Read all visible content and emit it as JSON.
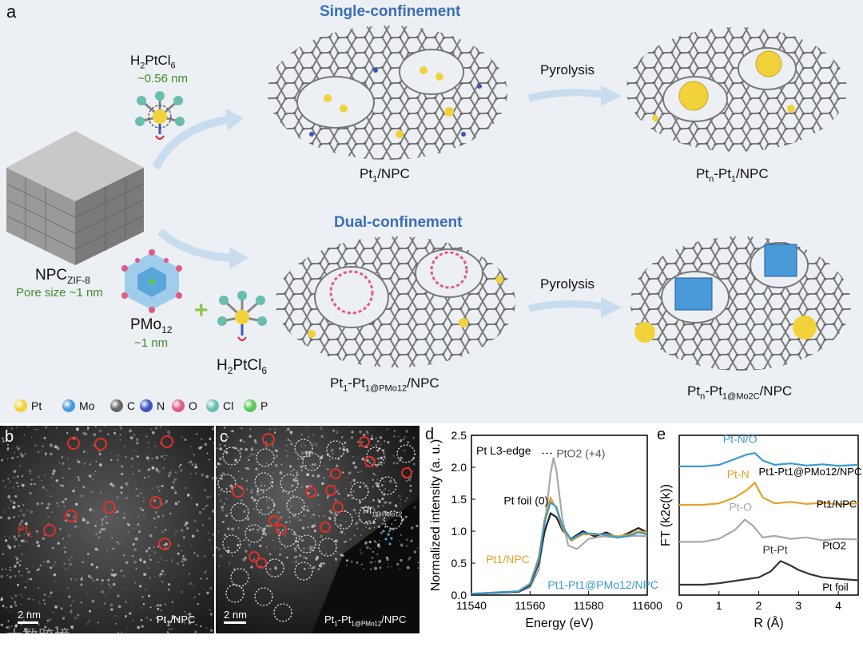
{
  "panel_a": {
    "letter": "a",
    "single_title": "Single-confinement",
    "dual_title": "Dual-confinement",
    "h2ptcl6_top": "H2PtCl6",
    "size_056": "~0.56 nm",
    "npc": "NPC",
    "npc_sub": "ZIF-8",
    "pore": "Pore size ~1 nm",
    "pmo12": "PMo",
    "pmo12_sub": "12",
    "size_1": "~1 nm",
    "h2ptcl6_bottom": "H2PtCl6",
    "pyrolysis": "Pyrolysis",
    "pt1_npc": "Pt1/NPC",
    "ptn_pt1_npc": "Ptn-Pt1/NPC",
    "pt1_pmo_npc": "Pt1-Pt1@PMo12/NPC",
    "ptn_mo2c_npc": "Ptn-Pt1@Mo2C/NPC",
    "legend": [
      {
        "label": "Pt",
        "color": "#f2d23a"
      },
      {
        "label": "Mo",
        "color": "#4a9ad9"
      },
      {
        "label": "C",
        "color": "#666666"
      },
      {
        "label": "N",
        "color": "#3c52c8"
      },
      {
        "label": "O",
        "color": "#e05a86"
      },
      {
        "label": "Cl",
        "color": "#69bfae"
      },
      {
        "label": "P",
        "color": "#5cc85a"
      }
    ]
  },
  "panel_b": {
    "letter": "b",
    "pt1": "Pt1",
    "scale": "2 nm",
    "caption": "Pt1/NPC"
  },
  "panel_c": {
    "letter": "c",
    "inset": "Pt1@PMo12",
    "scale": "2 nm",
    "caption": "Pt1-Pt1@PMo12/NPC"
  },
  "panel_d": {
    "letter": "d"
  },
  "panel_e": {
    "letter": "e"
  },
  "watermark": "大数跨境",
  "chart_data": [
    {
      "type": "line",
      "title": "Pt L3-edge",
      "xlabel": "Energy (eV)",
      "ylabel": "Normalized intensity (a. u.)",
      "xlim": [
        11540,
        11600
      ],
      "ylim": [
        0,
        2.5
      ],
      "xticks": [
        "11540",
        "11560",
        "11580",
        "11600"
      ],
      "yticks": [
        "0.0",
        "0.5",
        "1.0",
        "1.5",
        "2.0",
        "2.5"
      ],
      "annotations": [
        "PtO2 (+4)",
        "Pt foil (0)",
        "Pt1/NPC",
        "Pt1-Pt1@PMo12/NPC"
      ],
      "series": [
        {
          "name": "PtO2 (+4)",
          "color": "#a8a8a8",
          "x": [
            11540,
            11556,
            11560,
            11563,
            11565,
            11567,
            11568,
            11569,
            11571,
            11573,
            11576,
            11580,
            11585,
            11590,
            11595,
            11600
          ],
          "y": [
            0.02,
            0.05,
            0.12,
            0.4,
            1.1,
            1.9,
            2.15,
            1.95,
            1.2,
            0.78,
            0.72,
            0.88,
            0.92,
            0.9,
            0.93,
            0.92
          ]
        },
        {
          "name": "Pt foil (0)",
          "color": "#222222",
          "x": [
            11540,
            11556,
            11560,
            11563,
            11565,
            11567,
            11569,
            11571,
            11574,
            11578,
            11582,
            11586,
            11590,
            11594,
            11597,
            11600
          ],
          "y": [
            0.02,
            0.05,
            0.15,
            0.5,
            1.0,
            1.28,
            1.22,
            1.02,
            0.88,
            1.0,
            0.92,
            0.98,
            0.9,
            0.98,
            1.05,
            0.98
          ]
        },
        {
          "name": "Pt1/NPC",
          "color": "#e3a228",
          "x": [
            11540,
            11556,
            11560,
            11563,
            11565,
            11567,
            11569,
            11571,
            11574,
            11578,
            11582,
            11586,
            11590,
            11594,
            11597,
            11600
          ],
          "y": [
            0.02,
            0.06,
            0.18,
            0.6,
            1.2,
            1.52,
            1.35,
            1.05,
            0.85,
            0.95,
            0.95,
            0.95,
            0.92,
            0.95,
            1.0,
            0.98
          ]
        },
        {
          "name": "Pt1-Pt1@PMo12/NPC",
          "color": "#3a9ad0",
          "x": [
            11540,
            11556,
            11560,
            11563,
            11565,
            11567,
            11569,
            11571,
            11574,
            11578,
            11582,
            11586,
            11590,
            11594,
            11597,
            11600
          ],
          "y": [
            0.02,
            0.06,
            0.17,
            0.55,
            1.15,
            1.45,
            1.38,
            1.08,
            0.87,
            0.97,
            0.96,
            0.94,
            0.9,
            0.93,
            0.98,
            0.95
          ]
        }
      ]
    },
    {
      "type": "line",
      "xlabel": "R (Å)",
      "ylabel": "FT (k2c(k))",
      "xlim": [
        0,
        4.5
      ],
      "xticks": [
        "0",
        "1",
        "2",
        "3",
        "4"
      ],
      "annotations": [
        "Pt-N/O",
        "Pt-N",
        "Pt-O",
        "Pt-Pt"
      ],
      "series": [
        {
          "name": "Pt1-Pt1@PMo12/NPC",
          "color": "#3a9ad0",
          "x": [
            0,
            0.6,
            1.0,
            1.4,
            1.7,
            1.9,
            2.1,
            2.4,
            2.8,
            3.2,
            3.6,
            4.0,
            4.5
          ],
          "y": [
            4.35,
            4.35,
            4.4,
            4.6,
            4.75,
            4.8,
            4.55,
            4.4,
            4.45,
            4.38,
            4.42,
            4.37,
            4.4
          ]
        },
        {
          "name": "Pt1/NPC",
          "color": "#e3a228",
          "x": [
            0,
            0.6,
            1.0,
            1.4,
            1.7,
            1.9,
            2.1,
            2.4,
            2.8,
            3.2,
            3.6,
            4.0,
            4.5
          ],
          "y": [
            3.05,
            3.05,
            3.1,
            3.3,
            3.55,
            3.8,
            3.3,
            3.1,
            3.15,
            3.08,
            3.12,
            3.07,
            3.1
          ]
        },
        {
          "name": "PtO2",
          "color": "#a8a8a8",
          "x": [
            0,
            0.6,
            1.0,
            1.4,
            1.65,
            1.85,
            2.1,
            2.4,
            2.8,
            3.2,
            3.6,
            4.0,
            4.5
          ],
          "y": [
            1.8,
            1.8,
            1.9,
            2.2,
            2.55,
            2.35,
            1.95,
            2.0,
            1.9,
            1.95,
            1.85,
            1.9,
            1.88
          ]
        },
        {
          "name": "Pt foil",
          "color": "#333333",
          "x": [
            0,
            0.6,
            1.0,
            1.5,
            2.0,
            2.3,
            2.55,
            2.8,
            3.0,
            3.3,
            3.6,
            4.0,
            4.5
          ],
          "y": [
            0.35,
            0.35,
            0.4,
            0.5,
            0.6,
            0.8,
            1.15,
            1.0,
            0.85,
            0.7,
            0.6,
            0.55,
            0.5
          ]
        }
      ],
      "curve_labels": [
        "Pt1-Pt1@PMo12/NPC",
        "Pt1/NPC",
        "PtO2",
        "Pt foil"
      ]
    }
  ]
}
